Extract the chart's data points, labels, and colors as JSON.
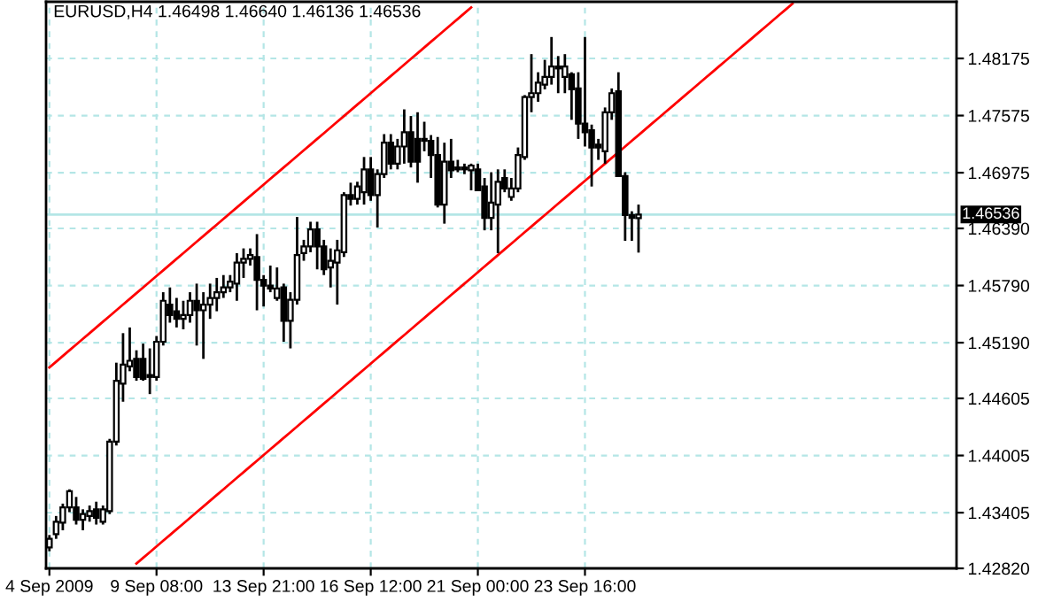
{
  "chart_data": {
    "type": "candlestick",
    "title": "EURUSD,H4 1.46498 1.46640 1.46136 1.46536",
    "categories": [
      "4 Sep 2009",
      null,
      null,
      null,
      null,
      null,
      null,
      null,
      null,
      null,
      null,
      null,
      null,
      null,
      null,
      null,
      "9 Sep 08:00",
      null,
      null,
      null,
      null,
      null,
      null,
      null,
      null,
      null,
      null,
      null,
      null,
      null,
      null,
      null,
      "13 Sep 21:00",
      null,
      null,
      null,
      null,
      null,
      null,
      null,
      null,
      null,
      null,
      null,
      null,
      null,
      null,
      null,
      "16 Sep 12:00",
      null,
      null,
      null,
      null,
      null,
      null,
      null,
      null,
      null,
      null,
      null,
      null,
      null,
      null,
      null,
      "21 Sep 00:00",
      null,
      null,
      null,
      null,
      null,
      null,
      null,
      null,
      null,
      null,
      null,
      null,
      null,
      null,
      null,
      "23 Sep 16:00",
      null,
      null,
      null,
      null,
      null,
      null,
      null,
      null,
      null,
      null,
      null,
      null,
      null,
      null,
      null,
      null,
      null,
      null,
      null,
      null,
      null,
      null,
      null,
      null,
      null,
      null,
      null,
      null,
      null,
      null,
      null,
      null,
      null,
      null,
      null,
      null,
      null,
      null,
      null,
      null,
      null,
      null,
      null,
      null,
      null,
      null,
      null,
      null,
      null,
      null,
      null,
      null,
      null,
      null,
      null
    ],
    "color": "#000000",
    "ohlc": [
      [
        1.4304,
        1.4317,
        1.43,
        1.4313
      ],
      [
        1.4318,
        1.4337,
        1.4313,
        1.4331
      ],
      [
        1.433,
        1.435,
        1.4322,
        1.4346
      ],
      [
        1.4346,
        1.4365,
        1.4341,
        1.4363
      ],
      [
        1.4346,
        1.4357,
        1.4328,
        1.4333
      ],
      [
        1.4333,
        1.4344,
        1.4322,
        1.4339
      ],
      [
        1.4337,
        1.4348,
        1.4331,
        1.4342
      ],
      [
        1.4344,
        1.4352,
        1.4328,
        1.4335
      ],
      [
        1.4331,
        1.4348,
        1.4328,
        1.4344
      ],
      [
        1.4342,
        1.4418,
        1.4339,
        1.4415
      ],
      [
        1.4415,
        1.4498,
        1.4411,
        1.4479
      ],
      [
        1.4476,
        1.4529,
        1.4457,
        1.4496
      ],
      [
        1.4494,
        1.4535,
        1.4489,
        1.45
      ],
      [
        1.4502,
        1.4511,
        1.4479,
        1.4483
      ],
      [
        1.4502,
        1.4518,
        1.4479,
        1.4481
      ],
      [
        1.4485,
        1.4513,
        1.4465,
        1.4483
      ],
      [
        1.4483,
        1.4526,
        1.4479,
        1.452
      ],
      [
        1.452,
        1.4572,
        1.4516,
        1.4563
      ],
      [
        1.4559,
        1.4577,
        1.454,
        1.4548
      ],
      [
        1.4552,
        1.4566,
        1.4535,
        1.4544
      ],
      [
        1.4544,
        1.4563,
        1.4533,
        1.4548
      ],
      [
        1.4548,
        1.4572,
        1.454,
        1.4563
      ],
      [
        1.4563,
        1.4581,
        1.4516,
        1.4553
      ],
      [
        1.4553,
        1.4572,
        1.4502,
        1.4559
      ],
      [
        1.4559,
        1.4581,
        1.4544,
        1.4566
      ],
      [
        1.4566,
        1.4587,
        1.4552,
        1.4572
      ],
      [
        1.4572,
        1.459,
        1.4566,
        1.4577
      ],
      [
        1.4577,
        1.459,
        1.4572,
        1.4583
      ],
      [
        1.4581,
        1.4613,
        1.4563,
        1.4603
      ],
      [
        1.4603,
        1.4618,
        1.4587,
        1.4607
      ],
      [
        1.4607,
        1.4618,
        1.46,
        1.4611
      ],
      [
        1.4609,
        1.4633,
        1.4553,
        1.4585
      ],
      [
        1.4585,
        1.459,
        1.4557,
        1.4579
      ],
      [
        1.4579,
        1.46,
        1.4572,
        1.4576
      ],
      [
        1.4566,
        1.4598,
        1.4563,
        1.4576
      ],
      [
        1.4577,
        1.4581,
        1.452,
        1.4542
      ],
      [
        1.4542,
        1.4572,
        1.4513,
        1.4564
      ],
      [
        1.4564,
        1.4651,
        1.4559,
        1.4611
      ],
      [
        1.4613,
        1.4627,
        1.4605,
        1.462
      ],
      [
        1.462,
        1.4646,
        1.4614,
        1.4638
      ],
      [
        1.4638,
        1.4646,
        1.4596,
        1.462
      ],
      [
        1.462,
        1.4627,
        1.459,
        1.4596
      ],
      [
        1.4598,
        1.4618,
        1.4577,
        1.4605
      ],
      [
        1.4603,
        1.4627,
        1.4559,
        1.4616
      ],
      [
        1.4614,
        1.4677,
        1.4609,
        1.4674
      ],
      [
        1.4674,
        1.4687,
        1.4663,
        1.467
      ],
      [
        1.467,
        1.4688,
        1.4664,
        1.4683
      ],
      [
        1.4677,
        1.4714,
        1.4664,
        1.4701
      ],
      [
        1.4701,
        1.4714,
        1.4668,
        1.4674
      ],
      [
        1.4674,
        1.4701,
        1.464,
        1.4696
      ],
      [
        1.4696,
        1.4738,
        1.4692,
        1.4729
      ],
      [
        1.4729,
        1.4738,
        1.4701,
        1.4707
      ],
      [
        1.4707,
        1.4733,
        1.4701,
        1.4725
      ],
      [
        1.4725,
        1.4764,
        1.4707,
        1.474
      ],
      [
        1.474,
        1.4757,
        1.4703,
        1.4709
      ],
      [
        1.4733,
        1.4761,
        1.4687,
        1.4709
      ],
      [
        1.4733,
        1.4751,
        1.472,
        1.4731
      ],
      [
        1.4731,
        1.4737,
        1.4692,
        1.4716
      ],
      [
        1.4716,
        1.4735,
        1.4661,
        1.4664
      ],
      [
        1.4664,
        1.4729,
        1.4644,
        1.4709
      ],
      [
        1.4709,
        1.4733,
        1.4692,
        1.47
      ],
      [
        1.4701,
        1.4711,
        1.4698,
        1.4703
      ],
      [
        1.4703,
        1.4707,
        1.4696,
        1.4701
      ],
      [
        1.47,
        1.4707,
        1.4679,
        1.4705
      ],
      [
        1.4701,
        1.4707,
        1.4679,
        1.4679
      ],
      [
        1.4683,
        1.4692,
        1.4637,
        1.465
      ],
      [
        1.465,
        1.4698,
        1.4637,
        1.4666
      ],
      [
        1.4664,
        1.4701,
        1.4613,
        1.4688
      ],
      [
        1.4692,
        1.4701,
        1.4677,
        1.4681
      ],
      [
        1.4672,
        1.4692,
        1.4668,
        1.4681
      ],
      [
        1.4681,
        1.4724,
        1.4677,
        1.4716
      ],
      [
        1.4714,
        1.4779,
        1.4711,
        1.4777
      ],
      [
        1.4777,
        1.4822,
        1.4761,
        1.4781
      ],
      [
        1.4781,
        1.4803,
        1.4772,
        1.4792
      ],
      [
        1.479,
        1.4816,
        1.4785,
        1.4798
      ],
      [
        1.4798,
        1.484,
        1.479,
        1.4809
      ],
      [
        1.4809,
        1.482,
        1.4781,
        1.4807
      ],
      [
        1.4798,
        1.4822,
        1.4781,
        1.4809
      ],
      [
        1.4801,
        1.4803,
        1.4753,
        1.4785
      ],
      [
        1.4786,
        1.4803,
        1.4733,
        1.4749
      ],
      [
        1.4749,
        1.484,
        1.4725,
        1.474
      ],
      [
        1.4742,
        1.4748,
        1.4683,
        1.4724
      ],
      [
        1.4727,
        1.4733,
        1.4711,
        1.4724
      ],
      [
        1.472,
        1.4766,
        1.4707,
        1.4761
      ],
      [
        1.4761,
        1.4786,
        1.4753,
        1.4781
      ],
      [
        1.4783,
        1.4803,
        1.4694,
        1.4694
      ],
      [
        1.4694,
        1.4698,
        1.4626,
        1.4653
      ],
      [
        1.4653,
        1.4657,
        1.4626,
        1.465
      ],
      [
        1.46498,
        1.4664,
        1.46136,
        1.46536
      ],
      null,
      null,
      null,
      null,
      null,
      null,
      null,
      null,
      null,
      null,
      null,
      null,
      null,
      null,
      null,
      null,
      null,
      null,
      null,
      null,
      null,
      null,
      null,
      null,
      null,
      null,
      null,
      null,
      null,
      null,
      null,
      null,
      null,
      null,
      null,
      null,
      null,
      null,
      null,
      null,
      null,
      null,
      null,
      null,
      null,
      null,
      null
    ],
    "series": [
      {
        "type": "line",
        "color": "#ff0000",
        "values": [
          1.4493,
          1.4499,
          1.4505,
          1.4511,
          1.4517,
          1.4523,
          1.4529,
          1.4535,
          1.4541,
          1.4547,
          1.4553,
          1.4559,
          1.4565,
          1.4571,
          1.4577,
          1.4583,
          1.4589,
          1.4595,
          1.4601,
          1.4607,
          1.4613,
          1.4619,
          1.4625,
          1.4631,
          1.4637,
          1.4643,
          1.4649,
          1.4655,
          1.4661,
          1.4667,
          1.4673,
          1.4679,
          1.4685,
          1.4691,
          1.4697,
          1.4703,
          1.4709,
          1.4715,
          1.4721,
          1.4727,
          1.4733,
          1.4739,
          1.4745,
          1.4751,
          1.4757,
          1.4763,
          1.4769,
          1.4775,
          1.4781,
          1.4787,
          1.4793,
          1.4799,
          1.4805,
          1.4811,
          1.4817,
          1.4823,
          1.4829,
          1.4835,
          1.4841,
          1.4847,
          1.4853,
          1.4859,
          1.4865,
          1.4871,
          null,
          null,
          null,
          null,
          null,
          null,
          null,
          null,
          null,
          null,
          null,
          null,
          null,
          null,
          null,
          null,
          null,
          null,
          null,
          null,
          null,
          null,
          null,
          null,
          null,
          null,
          null,
          null,
          null,
          null,
          null,
          null,
          null,
          null,
          null,
          null,
          null,
          null,
          null,
          null,
          null,
          null,
          null,
          null,
          null,
          null,
          null,
          null,
          null,
          null,
          null,
          null,
          null,
          null,
          null,
          null,
          null,
          null,
          null,
          null,
          null,
          null,
          null,
          null,
          null,
          null,
          null,
          null,
          null,
          null,
          null,
          null
        ]
      },
      {
        "type": "line",
        "color": "#ff0000",
        "values": [
          null,
          null,
          null,
          null,
          null,
          null,
          null,
          null,
          null,
          null,
          null,
          null,
          null,
          1.4287,
          1.4293,
          1.4299,
          1.4305,
          1.4311,
          1.4317,
          1.4323,
          1.4329,
          1.4335,
          1.4341,
          1.4347,
          1.4353,
          1.4359,
          1.4365,
          1.4371,
          1.4377,
          1.4383,
          1.4389,
          1.4395,
          1.4401,
          1.4407,
          1.4413,
          1.4419,
          1.4425,
          1.4431,
          1.4437,
          1.4443,
          1.4449,
          1.4455,
          1.4461,
          1.4467,
          1.4473,
          1.4479,
          1.4485,
          1.4491,
          1.4497,
          1.4503,
          1.4509,
          1.4515,
          1.4521,
          1.4527,
          1.4533,
          1.4539,
          1.4545,
          1.4551,
          1.4557,
          1.4563,
          1.4569,
          1.4575,
          1.4581,
          1.4587,
          1.4593,
          1.4599,
          1.4605,
          1.4611,
          1.4617,
          1.4623,
          1.4629,
          1.4635,
          1.4641,
          1.4647,
          1.4653,
          1.4659,
          1.4665,
          1.4671,
          1.4677,
          1.4683,
          1.4689,
          1.4695,
          1.4701,
          1.4707,
          1.4713,
          1.4719,
          1.4725,
          1.4731,
          1.4737,
          1.4743,
          1.4749,
          1.4755,
          1.4761,
          1.4767,
          1.4773,
          1.4779,
          1.4785,
          1.4791,
          1.4797,
          1.4803,
          1.4809,
          1.4815,
          1.4821,
          1.4827,
          1.4833,
          1.4839,
          1.4845,
          1.4851,
          1.4857,
          1.4863,
          1.4869,
          1.4875,
          null,
          null,
          null,
          null,
          null,
          null,
          null,
          null,
          null,
          null,
          null,
          null,
          null,
          null,
          null,
          null,
          null,
          null,
          null,
          null,
          null,
          null,
          null,
          null
        ]
      }
    ],
    "ylim": [
      1.4282,
      1.4877
    ],
    "yticks": [
      {
        "value": 1.4282,
        "label": "1.42820"
      },
      {
        "value": 1.43405,
        "label": "1.43405"
      },
      {
        "value": 1.44005,
        "label": "1.44005"
      },
      {
        "value": 1.44605,
        "label": "1.44605"
      },
      {
        "value": 1.4519,
        "label": "1.45190"
      },
      {
        "value": 1.4579,
        "label": "1.45790"
      },
      {
        "value": 1.4639,
        "label": "1.46390"
      },
      {
        "value": 1.46975,
        "label": "1.46975"
      },
      {
        "value": 1.47575,
        "label": "1.47575"
      },
      {
        "value": 1.48175,
        "label": "1.48175"
      }
    ],
    "ref_lines": [
      {
        "axis": "y",
        "value": 1.46536,
        "label": "1.46536",
        "color": "#b4e6e6"
      }
    ],
    "grid": true
  }
}
